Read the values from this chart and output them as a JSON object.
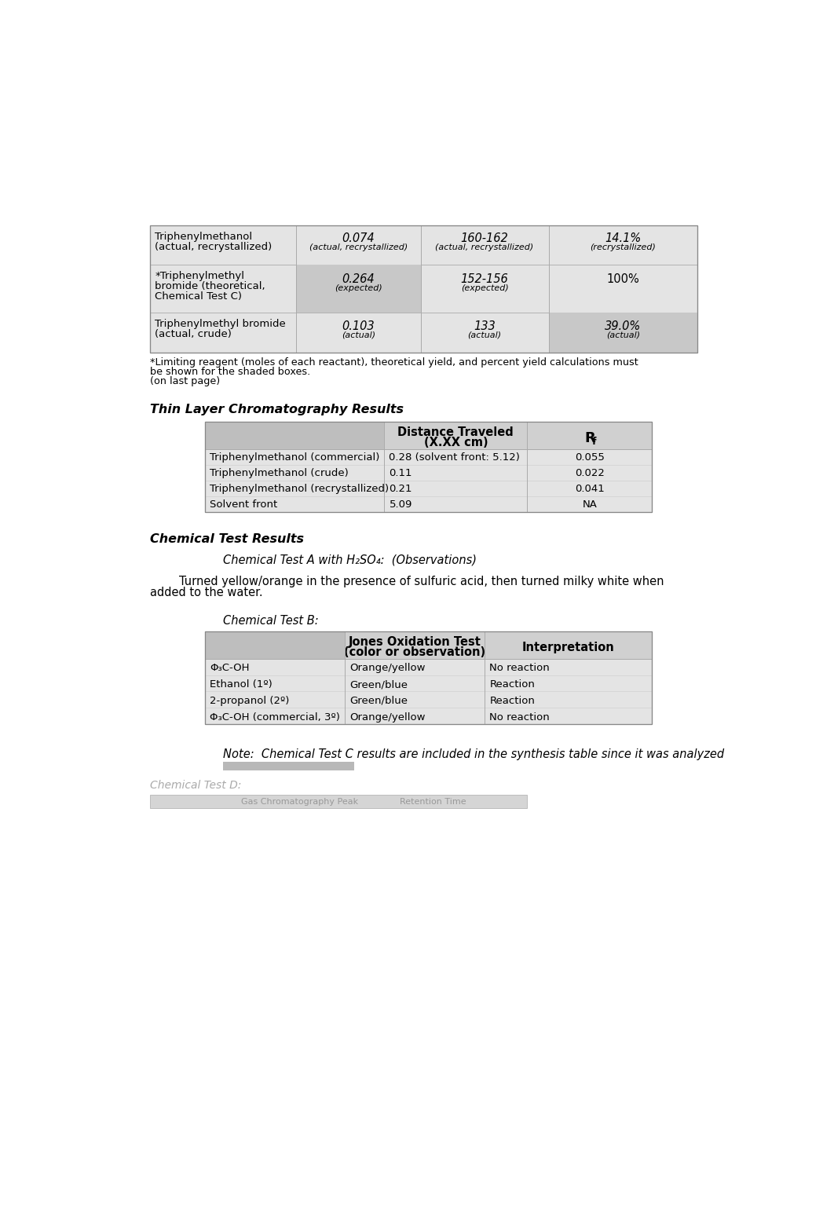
{
  "bg_color": "#ffffff",
  "synthesis_table": {
    "rows": [
      {
        "label": "Triphenylmethanol\n(actual, recrystallized)",
        "moles": "0.074",
        "moles_sub": "(actual, recrystallized)",
        "mp": "160-162",
        "mp_sub": "(actual, recrystallized)",
        "yield_val": "14.1%",
        "yield_sub": "(recrystallized)",
        "shade_moles": false,
        "shade_yield": false
      },
      {
        "label": "*Triphenylmethyl\nbromide (theoretical,\nChemical Test C)",
        "moles": "0.264",
        "moles_sub": "(expected)",
        "mp": "152-156",
        "mp_sub": "(expected)",
        "yield_val": "100%",
        "yield_sub": "",
        "shade_moles": true,
        "shade_yield": false
      },
      {
        "label": "Triphenylmethyl bromide\n(actual, crude)",
        "moles": "0.103",
        "moles_sub": "(actual)",
        "mp": "133",
        "mp_sub": "(actual)",
        "yield_val": "39.0%",
        "yield_sub": "(actual)",
        "shade_moles": false,
        "shade_yield": true
      }
    ],
    "footnote_line1": "*Limiting reagent (moles of each reactant), theoretical yield, and percent yield calculations must",
    "footnote_line2": "be shown for the shaded boxes.",
    "footnote_line3": "(on last page)"
  },
  "tlc_table": {
    "title": "Thin Layer Chromatography Results",
    "col2_header_1": "Distance Traveled",
    "col2_header_2": "(X.XX cm)",
    "col3_header": "R",
    "col3_header_sub": "f",
    "rows": [
      {
        "label": "Triphenylmethanol (commercial)",
        "distance": "0.28 (solvent front: 5.12)",
        "rf": "0.055"
      },
      {
        "label": "Triphenylmethanol (crude)",
        "distance": "0.11",
        "rf": "0.022"
      },
      {
        "label": "Triphenylmethanol (recrystallized)",
        "distance": "0.21",
        "rf": "0.041"
      },
      {
        "label": "Solvent front",
        "distance": "5.09",
        "rf": "NA"
      }
    ]
  },
  "chemical_test_results_title": "Chemical Test Results",
  "chem_test_A_label": "Chemical Test A with H",
  "chem_test_A_label_sub": "2",
  "chem_test_A_label_rest": "SO",
  "chem_test_A_label_sub2": "4",
  "chem_test_A_label_end": ":  (Observations)",
  "chem_test_A_line1": "        Turned yellow/orange in the presence of sulfuric acid, then turned milky white when",
  "chem_test_A_line2": "added to the water.",
  "chem_test_B_label": "Chemical Test B:",
  "jones_table": {
    "col2_header_1": "Jones Oxidation Test",
    "col2_header_2": "(color or observation)",
    "col3_header": "Interpretation",
    "rows": [
      {
        "label": "Φ₃C-OH",
        "jones": "Orange/yellow",
        "interp": "No reaction"
      },
      {
        "label": "Ethanol (1º)",
        "jones": "Green/blue",
        "interp": "Reaction"
      },
      {
        "label": "2-propanol (2º)",
        "jones": "Green/blue",
        "interp": "Reaction"
      },
      {
        "label": "Φ₃C-OH (commercial, 3º)",
        "jones": "Orange/yellow",
        "interp": "No reaction"
      }
    ]
  },
  "note_line1": "Note:  Chemical Test C results are included in the synthesis table since it was analyzed",
  "shade_gray": "#c8c8c8",
  "shade_dark": "#b0b0b0",
  "table_bg": "#e4e4e4",
  "header_bg": "#d0d0d0",
  "header_dark": "#bebebe"
}
